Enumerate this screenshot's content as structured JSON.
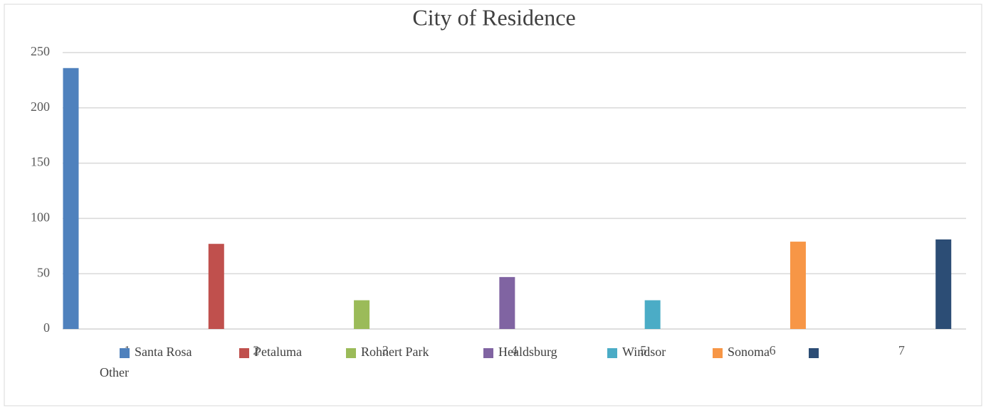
{
  "chart_data": {
    "type": "bar",
    "title": "City of Residence",
    "categories": [
      "1",
      "2",
      "3",
      "4",
      "5",
      "6",
      "7"
    ],
    "series": [
      {
        "name": "Santa Rosa",
        "color": "#4f81bd",
        "values": [
          236,
          null,
          null,
          null,
          null,
          null,
          null
        ]
      },
      {
        "name": "Petaluma",
        "color": "#c0504d",
        "values": [
          null,
          77,
          null,
          null,
          null,
          null,
          null
        ]
      },
      {
        "name": "Rohnert Park",
        "color": "#9bbb59",
        "values": [
          null,
          null,
          26,
          null,
          null,
          null,
          null
        ]
      },
      {
        "name": "Healdsburg",
        "color": "#8064a2",
        "values": [
          null,
          null,
          null,
          47,
          null,
          null,
          null
        ]
      },
      {
        "name": "Windsor",
        "color": "#4bacc6",
        "values": [
          null,
          null,
          null,
          null,
          26,
          null,
          null
        ]
      },
      {
        "name": "Sonoma",
        "color": "#f79646",
        "values": [
          null,
          null,
          null,
          null,
          null,
          79,
          null
        ]
      },
      {
        "name": "Other",
        "color": "#2c4d75",
        "values": [
          null,
          null,
          null,
          null,
          null,
          null,
          81
        ]
      }
    ],
    "ylim": [
      0,
      250
    ],
    "yticks": [
      0,
      50,
      100,
      150,
      200,
      250
    ],
    "grid": true,
    "legend": "bottom"
  }
}
